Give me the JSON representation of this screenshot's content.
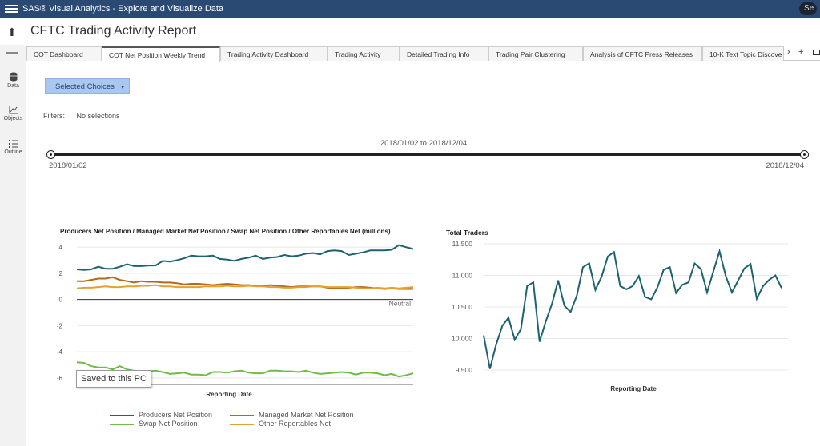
{
  "titlebar": {
    "app_title": "SAS® Visual Analytics - Explore and Visualize Data",
    "search_text": "Se"
  },
  "report": {
    "title": "CFTC Trading Activity Report"
  },
  "leftpane": [
    {
      "label": "Data",
      "icon": "database-icon"
    },
    {
      "label": "Objects",
      "icon": "chart-line-icon"
    },
    {
      "label": "Outline",
      "icon": "list-icon"
    }
  ],
  "tabs": [
    {
      "label": "COT Dashboard"
    },
    {
      "label": "COT Net Position Weekly Trend",
      "active": true
    },
    {
      "label": "Trading Activity Dashboard"
    },
    {
      "label": "Trading Activity"
    },
    {
      "label": "Detailed Trading Info"
    },
    {
      "label": "Trading Pair Clustering"
    },
    {
      "label": "Analysis of CFTC Press Releases"
    },
    {
      "label": "10-K Text Topic Discove"
    }
  ],
  "controls": {
    "selected_choices": "Selected Choices",
    "filters_label": "Filters:",
    "filters_value": "No selections",
    "range_label": "2018/01/02 to 2018/12/04",
    "range_start": "2018/01/02",
    "range_end": "2018/12/04"
  },
  "tooltip": "Saved to this PC",
  "colors": {
    "producers": "#1c6370",
    "managed": "#b8661a",
    "swap": "#6cbd45",
    "other": "#e3a12f",
    "traders": "#1c6370"
  },
  "chart_data": [
    {
      "type": "line",
      "title": "Producers Net Position / Managed Market Net Position / Swap Net Position / Other Reportables Net (millions)",
      "xlabel": "Reporting Date",
      "ylabel": "",
      "ylim": [
        -6.5,
        4.5
      ],
      "yticks": [
        4,
        2,
        0,
        -2,
        -4,
        -6
      ],
      "reference_line": {
        "value": 0,
        "label": "Neutral"
      },
      "series": [
        {
          "name": "Producers Net Position",
          "values": [
            2.3,
            2.25,
            2.3,
            2.5,
            2.35,
            2.35,
            2.5,
            2.7,
            2.55,
            2.55,
            2.6,
            2.6,
            2.95,
            2.9,
            3.0,
            3.15,
            3.35,
            3.3,
            3.3,
            3.35,
            3.1,
            3.05,
            2.95,
            3.1,
            3.2,
            3.35,
            3.1,
            3.2,
            3.25,
            3.4,
            3.3,
            3.35,
            3.5,
            3.55,
            3.45,
            3.7,
            3.75,
            3.7,
            3.4,
            3.5,
            3.6,
            3.75,
            3.75,
            3.75,
            3.8,
            4.15,
            4.0,
            3.85
          ]
        },
        {
          "name": "Managed Market Net Position",
          "values": [
            1.4,
            1.4,
            1.5,
            1.6,
            1.6,
            1.7,
            1.5,
            1.4,
            1.3,
            1.4,
            1.35,
            1.35,
            1.3,
            1.3,
            1.25,
            1.15,
            1.2,
            1.2,
            1.15,
            1.1,
            1.15,
            1.2,
            1.15,
            1.1,
            1.1,
            1.05,
            1.05,
            1.1,
            1.05,
            1.0,
            0.95,
            1.0,
            1.0,
            1.0,
            1.0,
            0.9,
            0.85,
            0.85,
            0.9,
            0.95,
            0.95,
            0.9,
            0.85,
            0.8,
            0.85,
            0.8,
            0.8,
            0.8
          ]
        },
        {
          "name": "Swap Net Position",
          "values": [
            -4.8,
            -4.85,
            -5.1,
            -5.2,
            -5.2,
            -5.35,
            -5.1,
            -5.35,
            -5.45,
            -5.5,
            -5.5,
            -5.45,
            -5.55,
            -5.7,
            -5.65,
            -5.6,
            -5.75,
            -5.75,
            -5.8,
            -5.55,
            -5.55,
            -5.6,
            -5.5,
            -5.45,
            -5.6,
            -5.65,
            -5.65,
            -5.45,
            -5.45,
            -5.5,
            -5.5,
            -5.55,
            -5.45,
            -5.6,
            -5.7,
            -5.65,
            -5.6,
            -5.55,
            -5.6,
            -5.75,
            -5.6,
            -5.6,
            -5.65,
            -5.8,
            -5.7,
            -5.9,
            -5.8,
            -5.65
          ]
        },
        {
          "name": "Other Reportables Net",
          "values": [
            0.85,
            0.9,
            0.9,
            0.95,
            1.0,
            0.95,
            0.95,
            1.0,
            1.0,
            1.05,
            1.05,
            1.1,
            1.0,
            1.0,
            0.95,
            0.95,
            0.95,
            0.95,
            1.0,
            1.0,
            1.0,
            1.05,
            1.0,
            1.0,
            1.05,
            1.0,
            1.0,
            0.95,
            0.95,
            0.9,
            0.9,
            0.95,
            0.95,
            1.0,
            1.0,
            0.95,
            0.95,
            0.95,
            0.95,
            0.9,
            0.85,
            0.85,
            0.9,
            0.85,
            0.9,
            0.85,
            0.9,
            0.95
          ]
        }
      ],
      "legend_position": "bottom",
      "grid": true
    },
    {
      "type": "line",
      "title": "Total Traders",
      "xlabel": "Reporting Date",
      "ylabel": "",
      "ylim": [
        9450,
        11550
      ],
      "yticks": [
        11500,
        11000,
        10500,
        10000,
        9500
      ],
      "ytick_labels": [
        "11,500",
        "11,000",
        "10,500",
        "10,000",
        "9,500"
      ],
      "series": [
        {
          "name": "Total Traders",
          "values": [
            10050,
            9520,
            9900,
            10200,
            10330,
            9980,
            10150,
            10830,
            10890,
            9950,
            10270,
            10550,
            10920,
            10520,
            10420,
            10680,
            11130,
            11190,
            10770,
            10980,
            11300,
            11370,
            10830,
            10780,
            10830,
            10990,
            10660,
            10620,
            10810,
            11090,
            11130,
            10720,
            10850,
            10890,
            11190,
            11100,
            10730,
            11060,
            11380,
            10990,
            10730,
            10920,
            11110,
            11180,
            10630,
            10830,
            10930,
            11000,
            10800
          ]
        }
      ],
      "legend_position": "none",
      "grid": true
    }
  ]
}
